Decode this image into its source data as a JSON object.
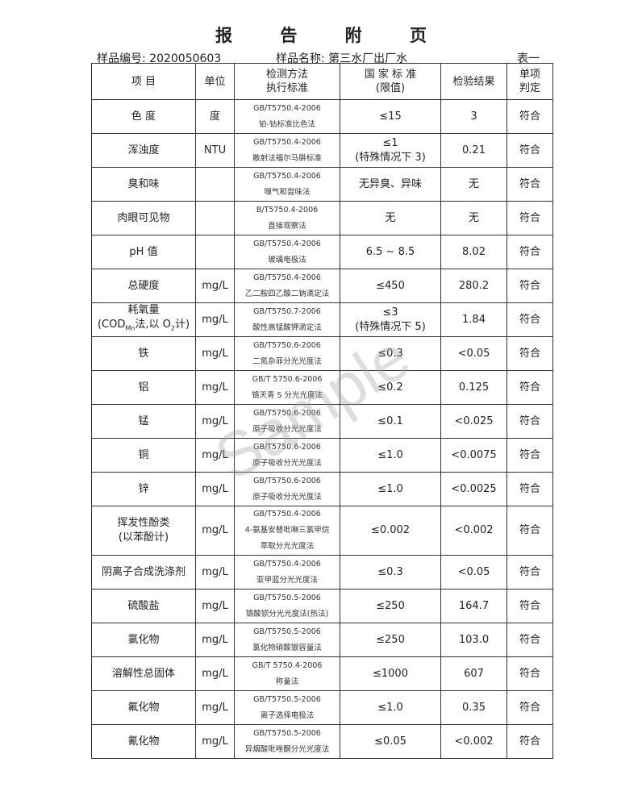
{
  "title": "报 告 附 页",
  "sample_no": "样品编号: 2020050603",
  "sample_name": "样品名称: 第三水厂出厂水",
  "table_id": "表一",
  "watermark": "Sample",
  "headers": {
    "item": "项 目",
    "unit": "单位",
    "method1": "检测方法",
    "method2": "执行标准",
    "std1": "国 家 标 准",
    "std2": "(限值)",
    "result": "检验结果",
    "judge1": "单项",
    "judge2": "判定"
  },
  "rows": [
    {
      "item": "色 度",
      "unit": "度",
      "code": "GB/T5750.4-2006",
      "method": "铂-钴标准比色法",
      "limit": "≤15",
      "result": "3",
      "judge": "符合"
    },
    {
      "item": "浑浊度",
      "unit": "NTU",
      "code": "GB/T5750.4-2006",
      "method": "散射法福尔马肼标准",
      "limit": "≤1",
      "limit2": "(特殊情况下 3)",
      "result": "0.21",
      "judge": "符合"
    },
    {
      "item": "臭和味",
      "unit": "",
      "code": "GB/T5750.4-2006",
      "method": "嗅气和尝味法",
      "limit": "无异臭、异味",
      "result": "无",
      "judge": "符合"
    },
    {
      "item": "肉眼可见物",
      "unit": "",
      "code": "B/T5750.4-2006",
      "method": "直接观察法",
      "limit": "无",
      "result": "无",
      "judge": "符合"
    },
    {
      "item": "pH 值",
      "unit": "",
      "code": "GB/T5750.4-2006",
      "method": "玻璃电极法",
      "limit": "6.5 ~ 8.5",
      "result": "8.02",
      "judge": "符合"
    },
    {
      "item": "总硬度",
      "unit": "mg/L",
      "code": "GB/T5750.4-2006",
      "method": "乙二胺四乙酸二钠滴定法",
      "limit": "≤450",
      "result": "280.2",
      "judge": "符合"
    },
    {
      "item": "耗氧量",
      "item2": "(COD<sub>Mn</sub>法,以 O<sub>2</sub>计)",
      "unit": "mg/L",
      "code": "GB/T5750.7-2006",
      "method": "酸性高锰酸钾滴定法",
      "limit": "≤3",
      "limit2": "(特殊情况下 5)",
      "result": "1.84",
      "judge": "符合"
    },
    {
      "item": "铁",
      "unit": "mg/L",
      "code": "GB/T5750.6-2006",
      "method": "二氮杂菲分光光度法",
      "limit": "≤0.3",
      "result": "<0.05",
      "judge": "符合"
    },
    {
      "item": "铝",
      "unit": "mg/L",
      "code": "GB/T 5750.6-2006",
      "method": "铬天青 S 分光光度法",
      "limit": "≤0.2",
      "result": "0.125",
      "judge": "符合"
    },
    {
      "item": "锰",
      "unit": "mg/L",
      "code": "GB/T5750.6-2006",
      "method": "原子吸收分光光度法",
      "limit": "≤0.1",
      "result": "<0.025",
      "judge": "符合"
    },
    {
      "item": "铜",
      "unit": "mg/L",
      "code": "GB/T5750.6-2006",
      "method": "原子吸收分光光度法",
      "limit": "≤1.0",
      "result": "<0.0075",
      "judge": "符合"
    },
    {
      "item": "锌",
      "unit": "mg/L",
      "code": "GB/T5750.6-2006",
      "method": "原子吸收分光光度法",
      "limit": "≤1.0",
      "result": "<0.0025",
      "judge": "符合"
    },
    {
      "item": "挥发性酚类",
      "item2": "(以苯酚计)",
      "unit": "mg/L",
      "code": "GB/T5750.4-2006",
      "method": "4-氨基安替吡啉三氯甲烷",
      "method2": "萃取分光光度法",
      "limit": "≤0.002",
      "result": "<0.002",
      "judge": "符合"
    },
    {
      "item": "阴离子合成洗涤剂",
      "unit": "mg/L",
      "code": "GB/T5750.4-2006",
      "method": "亚甲蓝分光光度法",
      "limit": "≤0.3",
      "result": "<0.05",
      "judge": "符合"
    },
    {
      "item": "硫酸盐",
      "unit": "mg/L",
      "code": "GB/T5750.5-2006",
      "method": "铬酸钡分光光度法(热法)",
      "limit": "≤250",
      "result": "164.7",
      "judge": "符合"
    },
    {
      "item": "氯化物",
      "unit": "mg/L",
      "code": "GB/T5750.5-2006",
      "method": "氯化物硝酸银容量法",
      "limit": "≤250",
      "result": "103.0",
      "judge": "符合"
    },
    {
      "item": "溶解性总固体",
      "unit": "mg/L",
      "code": "GB/T 5750.4-2006",
      "method": "称量法",
      "limit": "≤1000",
      "result": "607",
      "judge": "符合"
    },
    {
      "item": "氟化物",
      "unit": "mg/L",
      "code": "GB/T5750.5-2006",
      "method": "离子选择电极法",
      "limit": "≤1.0",
      "result": "0.35",
      "judge": "符合"
    },
    {
      "item": "氰化物",
      "unit": "mg/L",
      "code": "GB/T5750.5-2006",
      "method": "异烟酸吡唑酮分光光度法",
      "limit": "≤0.05",
      "result": "<0.002",
      "judge": "符合"
    }
  ]
}
